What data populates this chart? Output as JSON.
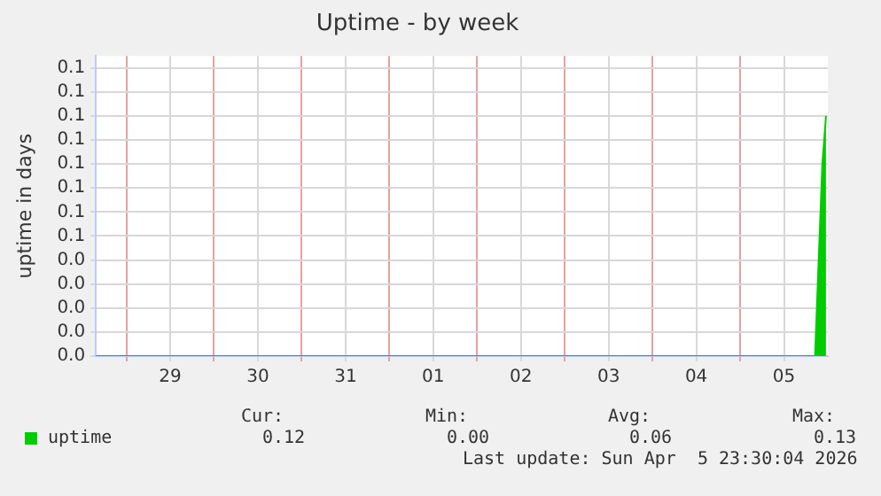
{
  "chart_data": {
    "type": "area",
    "title": "Uptime - by week",
    "ylabel": "uptime in days",
    "x": [
      "2026-03-28T15:40",
      "2026-04-05T20:30",
      "2026-04-05T21:30",
      "2026-04-05T22:30",
      "2026-04-05T23:30"
    ],
    "series": [
      {
        "name": "uptime",
        "color": "#00cc00",
        "values": [
          0,
          0,
          0.04,
          0.08,
          0.1
        ]
      }
    ],
    "xlim": [
      "2026-03-28T15:40",
      "2026-04-06T00:00"
    ],
    "xticks": [
      {
        "value": "2026-03-29T00:00",
        "label": null
      },
      {
        "value": "2026-03-29T12:00",
        "label": "29"
      },
      {
        "value": "2026-03-30T00:00",
        "label": null
      },
      {
        "value": "2026-03-30T12:00",
        "label": "30"
      },
      {
        "value": "2026-03-31T00:00",
        "label": null
      },
      {
        "value": "2026-03-31T12:00",
        "label": "31"
      },
      {
        "value": "2026-04-01T00:00",
        "label": null
      },
      {
        "value": "2026-04-01T12:00",
        "label": "01"
      },
      {
        "value": "2026-04-02T00:00",
        "label": null
      },
      {
        "value": "2026-04-02T12:00",
        "label": "02"
      },
      {
        "value": "2026-04-03T00:00",
        "label": null
      },
      {
        "value": "2026-04-03T12:00",
        "label": "03"
      },
      {
        "value": "2026-04-04T00:00",
        "label": null
      },
      {
        "value": "2026-04-04T12:00",
        "label": "04"
      },
      {
        "value": "2026-04-05T00:00",
        "label": null
      },
      {
        "value": "2026-04-05T12:00",
        "label": "05"
      }
    ],
    "ylim": [
      0,
      0.125
    ],
    "yticks": [
      {
        "value": 0,
        "label": "0.0"
      },
      {
        "value": 0.01,
        "label": "0.0"
      },
      {
        "value": 0.02,
        "label": "0.0"
      },
      {
        "value": 0.03,
        "label": "0.0"
      },
      {
        "value": 0.04,
        "label": "0.0"
      },
      {
        "value": 0.05,
        "label": "0.1"
      },
      {
        "value": 0.06,
        "label": "0.1"
      },
      {
        "value": 0.07,
        "label": "0.1"
      },
      {
        "value": 0.08,
        "label": "0.1"
      },
      {
        "value": 0.09,
        "label": "0.1"
      },
      {
        "value": 0.1,
        "label": "0.1"
      },
      {
        "value": 0.11,
        "label": "0.1"
      },
      {
        "value": 0.12,
        "label": "0.1"
      }
    ],
    "grid": true,
    "marker": "none",
    "legend": "bottom left",
    "annotations": [
      "Cur:",
      "Min:",
      "Avg:",
      "Max:",
      "0.12",
      "0.00",
      "0.06",
      "0.13",
      "Last update: Sun Apr  5 23:30:04 2026"
    ]
  }
}
